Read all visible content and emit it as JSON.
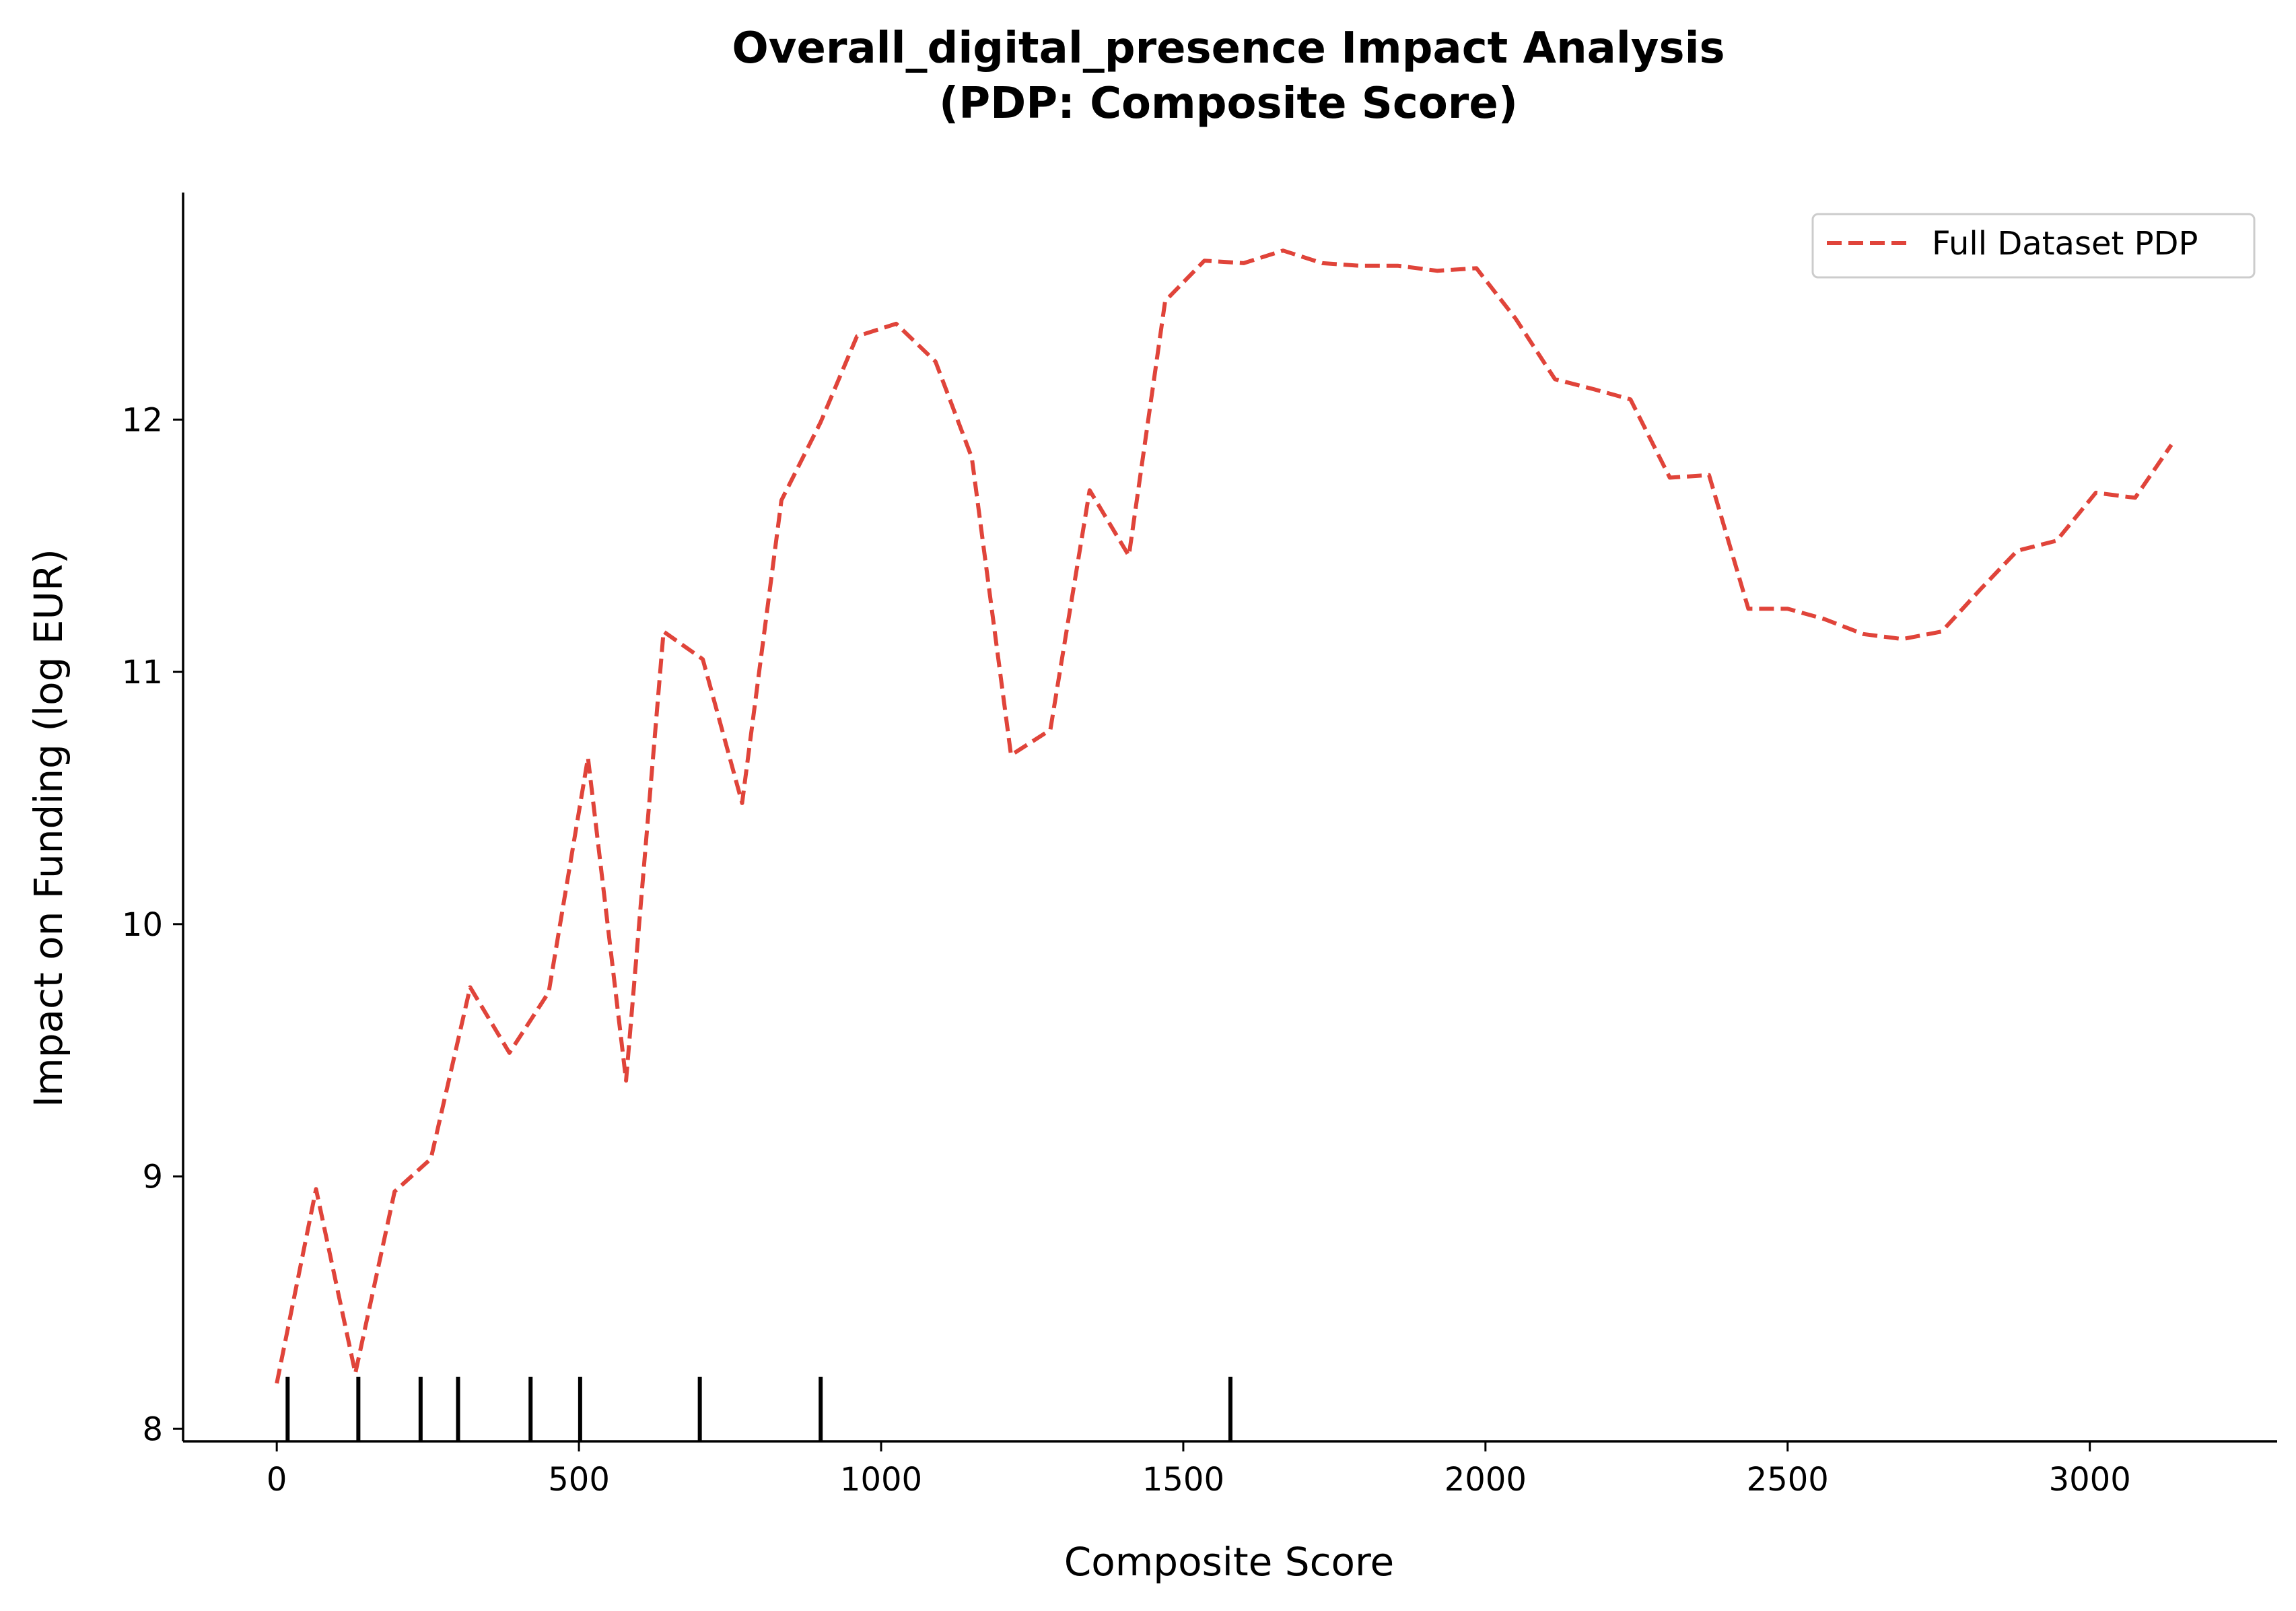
{
  "chart_data": {
    "type": "line",
    "title_line1": "Overall_digital_presence Impact Analysis",
    "title_line2": "(PDP: Composite Score)",
    "xlabel": "Composite Score",
    "ylabel": "Impact on Funding (log EUR)",
    "xlim": [
      -155,
      3310
    ],
    "ylim": [
      7.95,
      12.9
    ],
    "x_ticks": [
      0,
      500,
      1000,
      1500,
      2000,
      2500,
      3000
    ],
    "x_tick_labels": [
      "0",
      "500",
      "1000",
      "1500",
      "2000",
      "2500",
      "3000"
    ],
    "y_ticks": [
      8,
      9,
      10,
      11,
      12
    ],
    "y_tick_labels": [
      "8",
      "9",
      "10",
      "11",
      "12"
    ],
    "grid": false,
    "legend": {
      "position": "top-right",
      "entries": [
        {
          "label": "Full Dataset PDP"
        }
      ]
    },
    "series": [
      {
        "name": "Full Dataset PDP",
        "color": "#e0443a",
        "line_style": "dashed",
        "x": [
          0,
          65,
          130,
          195,
          255,
          320,
          385,
          450,
          515,
          578,
          640,
          705,
          770,
          835,
          900,
          960,
          1025,
          1090,
          1150,
          1215,
          1280,
          1345,
          1410,
          1470,
          1535,
          1600,
          1665,
          1730,
          1790,
          1855,
          1920,
          1985,
          2050,
          2115,
          2180,
          2240,
          2305,
          2370,
          2435,
          2500,
          2560,
          2625,
          2690,
          2755,
          2820,
          2880,
          2945,
          3010,
          3075,
          3135
        ],
        "y": [
          8.18,
          8.95,
          8.22,
          8.94,
          9.07,
          9.75,
          9.49,
          9.73,
          10.66,
          9.38,
          11.16,
          11.05,
          10.48,
          11.68,
          11.99,
          12.33,
          12.38,
          12.23,
          11.85,
          10.67,
          10.77,
          11.72,
          11.46,
          12.47,
          12.63,
          12.62,
          12.67,
          12.62,
          12.61,
          12.61,
          12.59,
          12.6,
          12.4,
          12.16,
          12.12,
          12.08,
          11.77,
          11.78,
          11.25,
          11.25,
          11.21,
          11.15,
          11.13,
          11.16,
          11.33,
          11.48,
          11.52,
          11.71,
          11.69,
          11.9
        ]
      }
    ],
    "rug": [
      18,
      135,
      238,
      300,
      420,
      502,
      700,
      900,
      1578
    ]
  }
}
